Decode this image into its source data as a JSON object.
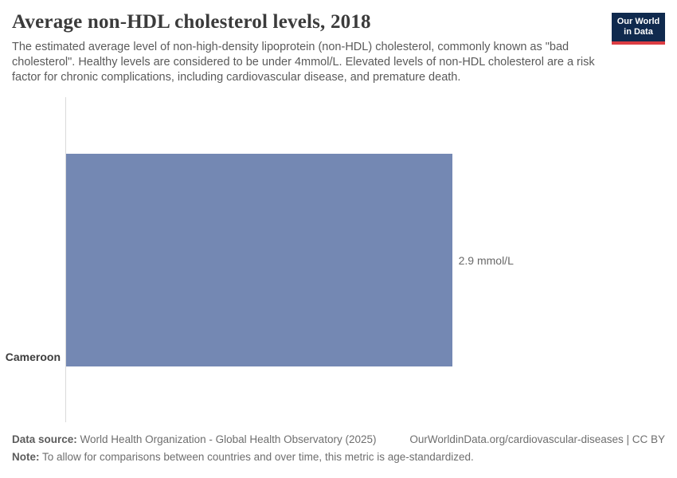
{
  "header": {
    "title": "Average non-HDL cholesterol levels, 2018",
    "subtitle": "The estimated average level of non-high-density lipoprotein (non-HDL) cholesterol, commonly known as \"bad cholesterol\". Healthy levels are considered to be under 4mmol/L. Elevated levels of non-HDL cholesterol are a risk factor for chronic complications, including cardiovascular disease, and premature death.",
    "logo": {
      "line1": "Our World",
      "line2": "in Data",
      "bg_color": "#102a4e",
      "accent_color": "#dc3d43"
    }
  },
  "chart_data": {
    "type": "bar",
    "orientation": "horizontal",
    "title": "Average non-HDL cholesterol levels, 2018",
    "categories": [
      "Cameroon"
    ],
    "values": [
      2.9
    ],
    "value_labels": [
      "2.9 mmol/L"
    ],
    "unit": "mmol/L",
    "xlabel": "",
    "ylabel": "",
    "xlim": [
      0,
      4.5
    ],
    "grid": false,
    "legend": "none",
    "bar_color": "#7488b3",
    "axis_color": "#dadada"
  },
  "footer": {
    "source_label": "Data source:",
    "source_text": "World Health Organization - Global Health Observatory (2025)",
    "attribution": "OurWorldinData.org/cardiovascular-diseases | CC BY",
    "note_label": "Note:",
    "note_text": "To allow for comparisons between countries and over time, this metric is age-standardized."
  }
}
